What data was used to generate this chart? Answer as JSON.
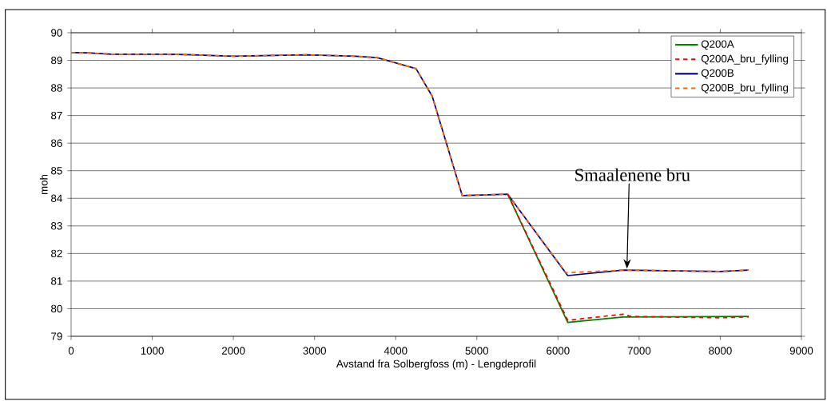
{
  "chart_data": {
    "type": "line",
    "xlabel": "Avstand fra Solbergfoss (m) - Lengdeprofil",
    "ylabel": "moh",
    "xlim": [
      0,
      9000
    ],
    "xticks": [
      0,
      1000,
      2000,
      3000,
      4000,
      5000,
      6000,
      7000,
      8000,
      9000
    ],
    "ylim": [
      79,
      90
    ],
    "yticks": [
      79,
      80,
      81,
      82,
      83,
      84,
      85,
      86,
      87,
      88,
      89,
      90
    ],
    "grid": "y",
    "legend": "top right",
    "marker": "none",
    "annotations": [
      {
        "text": "Smaalenene bru",
        "x": 6850,
        "y": 81.45
      }
    ],
    "series": [
      {
        "name": "Q200A",
        "color": "#008000",
        "line_style": "solid",
        "x": [
          5380,
          6120,
          6800,
          8350
        ],
        "values": [
          84.15,
          79.5,
          79.7,
          79.72
        ]
      },
      {
        "name": "Q200A_bru_fylling",
        "color": "#ff0000",
        "line_style": "dashed",
        "x": [
          5380,
          6120,
          6800,
          6900,
          8000,
          8350
        ],
        "values": [
          84.15,
          79.58,
          79.8,
          79.72,
          79.67,
          79.7
        ]
      },
      {
        "name": "Q200B",
        "color": "#000080",
        "line_style": "solid",
        "x": [
          0,
          200,
          500,
          1200,
          1500,
          2000,
          2500,
          2900,
          3500,
          3770,
          4250,
          4450,
          4820,
          5380,
          6120,
          6800,
          8000,
          8350
        ],
        "values": [
          89.28,
          89.27,
          89.22,
          89.22,
          89.2,
          89.15,
          89.18,
          89.2,
          89.15,
          89.1,
          88.7,
          87.7,
          84.1,
          84.15,
          81.2,
          81.4,
          81.35,
          81.4
        ]
      },
      {
        "name": "Q200B_bru_fylling",
        "color": "#ff6600",
        "line_style": "dashed",
        "x": [
          0,
          200,
          500,
          1200,
          1500,
          2000,
          2500,
          2900,
          3500,
          3770,
          4250,
          4450,
          4820,
          5380,
          6100,
          6800,
          8000,
          8350
        ],
        "values": [
          89.28,
          89.27,
          89.22,
          89.22,
          89.2,
          89.15,
          89.18,
          89.2,
          89.15,
          89.1,
          88.7,
          87.7,
          84.1,
          84.15,
          81.3,
          81.4,
          81.35,
          81.4
        ]
      }
    ]
  }
}
